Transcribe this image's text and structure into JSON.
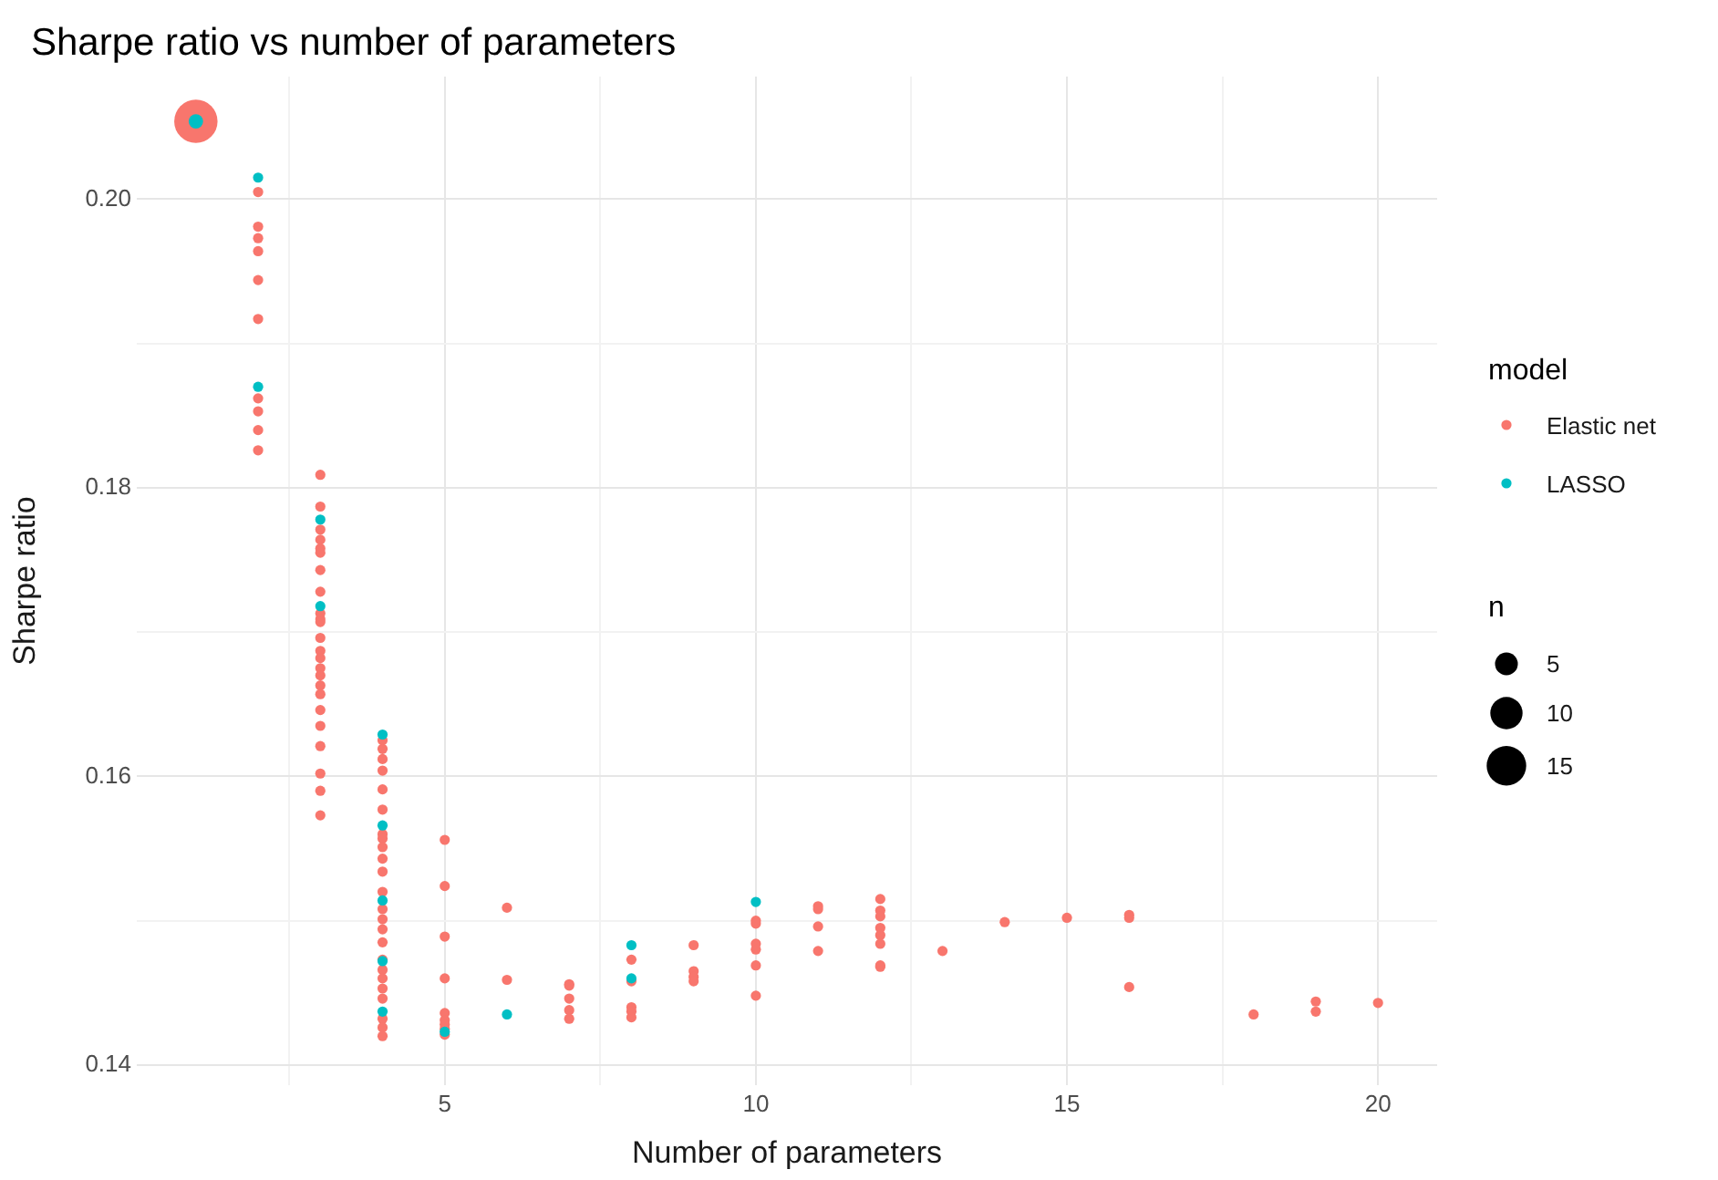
{
  "chart_data": {
    "type": "bubble",
    "title": "Sharpe ratio vs number of parameters",
    "xlabel": "Number of parameters",
    "ylabel": "Sharpe ratio",
    "legend_title": "model",
    "legend": "right",
    "marker": "circle",
    "grid": true,
    "xlim": [
      0.05,
      20.95
    ],
    "xticks": [
      {
        "value": 2.5,
        "label": null
      },
      5,
      {
        "value": 7.5,
        "label": null
      },
      10,
      {
        "value": 12.5,
        "label": null
      },
      15,
      {
        "value": 17.5,
        "label": null
      },
      20
    ],
    "ylim": [
      0.1386,
      0.2085
    ],
    "yticks": [
      {
        "value": 0.14,
        "label": "0.14"
      },
      {
        "value": 0.15,
        "label": null
      },
      {
        "value": 0.16,
        "label": "0.16"
      },
      {
        "value": 0.17,
        "label": null
      },
      {
        "value": 0.18,
        "label": "0.18"
      },
      {
        "value": 0.19,
        "label": null
      },
      {
        "value": 0.2,
        "label": "0.20"
      }
    ],
    "size_legend": [
      5,
      10,
      15
    ],
    "annotations": [
      "n"
    ],
    "series": [
      {
        "name": "Elastic net",
        "color": "#f8766d",
        "x": [
          1,
          2,
          2,
          2,
          2,
          2,
          2,
          2,
          2,
          2,
          2,
          3,
          3,
          3,
          3,
          3,
          3,
          3,
          3,
          3,
          3,
          3,
          3,
          3,
          3,
          3,
          3,
          3,
          3,
          3,
          3,
          3,
          3,
          3,
          3,
          4,
          4,
          4,
          4,
          4,
          4,
          4,
          4,
          4,
          4,
          4,
          4,
          4,
          4,
          4,
          4,
          4,
          4,
          4,
          4,
          4,
          4,
          4,
          4,
          5,
          5,
          5,
          5,
          5,
          5,
          5,
          5,
          5,
          6,
          6,
          7,
          7,
          7,
          7,
          7,
          8,
          8,
          8,
          8,
          8,
          9,
          9,
          9,
          9,
          10,
          10,
          10,
          10,
          10,
          10,
          11,
          11,
          11,
          11,
          12,
          12,
          12,
          12,
          12,
          12,
          12,
          12,
          13,
          14,
          15,
          16,
          16,
          16,
          18,
          19,
          19,
          20
        ],
        "values": [
          0.2054,
          0.2005,
          0.1981,
          0.1973,
          0.1964,
          0.1944,
          0.1917,
          0.1862,
          0.1853,
          0.184,
          0.1826,
          0.1809,
          0.1787,
          0.1771,
          0.1764,
          0.1758,
          0.1755,
          0.1743,
          0.1728,
          0.1713,
          0.1709,
          0.1707,
          0.1696,
          0.1687,
          0.1682,
          0.1675,
          0.167,
          0.1663,
          0.1657,
          0.1646,
          0.1635,
          0.1621,
          0.1602,
          0.159,
          0.1573,
          0.1625,
          0.1619,
          0.1612,
          0.1604,
          0.1591,
          0.1577,
          0.156,
          0.1557,
          0.1551,
          0.1543,
          0.1534,
          0.152,
          0.1508,
          0.1501,
          0.1494,
          0.1485,
          0.1473,
          0.1466,
          0.146,
          0.1453,
          0.1446,
          0.1432,
          0.1426,
          0.142,
          0.1556,
          0.1524,
          0.1489,
          0.146,
          0.1436,
          0.1431,
          0.1428,
          0.1425,
          0.1421,
          0.1509,
          0.1459,
          0.1456,
          0.1455,
          0.1446,
          0.1438,
          0.1432,
          0.1473,
          0.1458,
          0.144,
          0.1437,
          0.1433,
          0.1483,
          0.1465,
          0.1461,
          0.1458,
          0.15,
          0.1498,
          0.1484,
          0.148,
          0.1469,
          0.1448,
          0.151,
          0.1508,
          0.1496,
          0.1479,
          0.1515,
          0.1507,
          0.1503,
          0.1495,
          0.149,
          0.1484,
          0.1469,
          0.1468,
          0.1479,
          0.1499,
          0.1502,
          0.1504,
          0.1502,
          0.1454,
          0.1435,
          0.1444,
          0.1437,
          0.1443
        ],
        "sizes": [
          18,
          1,
          1,
          1,
          1,
          1,
          1,
          1,
          1,
          1,
          1,
          1,
          1,
          1,
          1,
          1,
          1,
          1,
          1,
          1,
          1,
          1,
          1,
          1,
          1,
          1,
          1,
          1,
          1,
          1,
          1,
          1,
          1,
          1,
          1,
          1,
          1,
          1,
          1,
          1,
          1,
          1,
          1,
          1,
          1,
          1,
          1,
          1,
          1,
          1,
          1,
          1,
          1,
          1,
          1,
          1,
          1,
          1,
          1,
          1,
          1,
          1,
          1,
          1,
          1,
          1,
          1,
          1,
          1,
          1,
          1,
          1,
          1,
          1,
          1,
          1,
          1,
          1,
          1,
          1,
          1,
          1,
          1,
          1,
          1,
          1,
          1,
          1,
          1,
          1,
          1,
          1,
          1,
          1,
          1,
          1,
          1,
          1,
          1,
          1,
          1,
          1,
          1,
          1,
          1,
          1,
          1,
          1,
          1,
          1,
          1,
          1
        ]
      },
      {
        "name": "LASSO",
        "color": "#00bfc4",
        "x": [
          1,
          2,
          2,
          3,
          3,
          4,
          4,
          4,
          4,
          4,
          5,
          6,
          8,
          8,
          10
        ],
        "values": [
          0.2054,
          0.2015,
          0.187,
          0.1778,
          0.1718,
          0.1629,
          0.1566,
          0.1514,
          0.1472,
          0.1437,
          0.1423,
          0.1435,
          0.1483,
          0.146,
          0.1513
        ],
        "sizes": [
          2,
          1,
          1,
          1,
          1,
          1,
          1,
          1,
          1,
          1,
          1,
          1,
          1,
          1,
          1
        ]
      }
    ]
  }
}
